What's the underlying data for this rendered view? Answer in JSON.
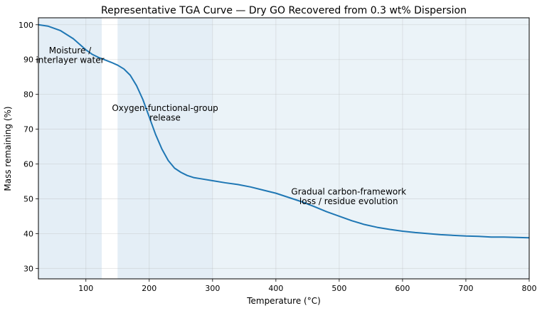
{
  "chart_data": {
    "type": "line",
    "title": "Representative TGA Curve — Dry GO Recovered from 0.3 wt% Dispersion",
    "xlabel": "Temperature (°C)",
    "ylabel": "Mass remaining (%)",
    "xlim": [
      25,
      800
    ],
    "ylim": [
      27,
      102
    ],
    "xticks": [
      100,
      200,
      300,
      400,
      500,
      600,
      700,
      800
    ],
    "yticks": [
      30,
      40,
      50,
      60,
      70,
      80,
      90,
      100
    ],
    "grid": true,
    "series": [
      {
        "color": "#1f77b4",
        "x": [
          25,
          40,
          60,
          80,
          100,
          110,
          120,
          130,
          140,
          150,
          160,
          170,
          180,
          190,
          200,
          210,
          220,
          230,
          240,
          250,
          260,
          270,
          280,
          300,
          320,
          340,
          360,
          380,
          400,
          420,
          440,
          460,
          480,
          500,
          520,
          540,
          560,
          580,
          600,
          620,
          640,
          660,
          680,
          700,
          720,
          740,
          760,
          780,
          800
        ],
        "y": [
          100.0,
          99.6,
          98.3,
          96.0,
          92.8,
          91.5,
          90.6,
          89.9,
          89.2,
          88.4,
          87.3,
          85.5,
          82.5,
          78.5,
          73.5,
          68.5,
          64.3,
          61.0,
          58.8,
          57.6,
          56.7,
          56.1,
          55.8,
          55.2,
          54.6,
          54.1,
          53.4,
          52.5,
          51.6,
          50.4,
          49.2,
          47.8,
          46.3,
          45.0,
          43.7,
          42.6,
          41.8,
          41.2,
          40.7,
          40.3,
          40.0,
          39.7,
          39.5,
          39.3,
          39.2,
          39.0,
          39.0,
          38.9,
          38.8
        ]
      }
    ],
    "regions": [
      {
        "x0": 25,
        "x1": 125,
        "label": "Moisture /\ninterlayer water",
        "label_x": 75,
        "label_y": 91.2,
        "color": "#1f77b4",
        "alpha": 0.12
      },
      {
        "x0": 150,
        "x1": 300,
        "label": "Oxygen-functional-group\nrelease",
        "label_x": 225,
        "label_y": 74.7,
        "color": "#1f77b4",
        "alpha": 0.12
      },
      {
        "x0": 300,
        "x1": 800,
        "label": "Gradual carbon-framework\nloss / residue evolution",
        "label_x": 515,
        "label_y": 50.7,
        "color": "#1f77b4",
        "alpha": 0.09
      }
    ]
  }
}
